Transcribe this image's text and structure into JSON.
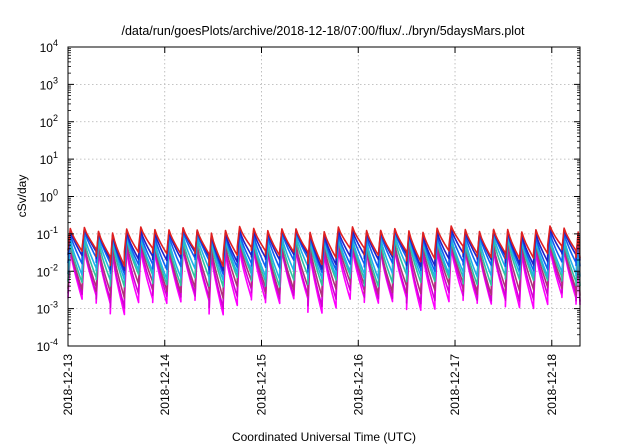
{
  "chart_data": {
    "type": "line",
    "title": "/data/run/goesPlots/archive/2018-12-18/07:00/flux/../bryn/5daysMars.plot",
    "xlabel": "Coordinated Universal Time (UTC)",
    "ylabel": "cSv/day",
    "yscale": "log",
    "ylim": [
      0.0001,
      10000
    ],
    "xlim": [
      "2018-12-13T00:00",
      "2018-12-18T07:00"
    ],
    "y_ticks": [
      {
        "value": 0.0001,
        "base": "10",
        "exp": "-4"
      },
      {
        "value": 0.001,
        "base": "10",
        "exp": "-3"
      },
      {
        "value": 0.01,
        "base": "10",
        "exp": "-2"
      },
      {
        "value": 0.1,
        "base": "10",
        "exp": "-1"
      },
      {
        "value": 1,
        "base": "10",
        "exp": "0"
      },
      {
        "value": 10,
        "base": "10",
        "exp": "1"
      },
      {
        "value": 100,
        "base": "10",
        "exp": "2"
      },
      {
        "value": 1000,
        "base": "10",
        "exp": "3"
      },
      {
        "value": 10000,
        "base": "10",
        "exp": "4"
      }
    ],
    "x_ticks": [
      "2018-12-13",
      "2018-12-14",
      "2018-12-15",
      "2018-12-16",
      "2018-12-17",
      "2018-12-18"
    ],
    "grid": true,
    "sawtooth_period_hours": 3.5,
    "series": [
      {
        "color": "#ff00ff",
        "peak": 0.035,
        "trough": 0.0015
      },
      {
        "color": "#d400d4",
        "peak": 0.04,
        "trough": 0.0022
      },
      {
        "color": "#b0307a",
        "peak": 0.05,
        "trough": 0.0035
      },
      {
        "color": "#2ec4a0",
        "peak": 0.065,
        "trough": 0.006
      },
      {
        "color": "#20b0e8",
        "peak": 0.08,
        "trough": 0.009
      },
      {
        "color": "#1060f0",
        "peak": 0.1,
        "trough": 0.015
      },
      {
        "color": "#2020c8",
        "peak": 0.115,
        "trough": 0.022
      },
      {
        "color": "#e02020",
        "peak": 0.13,
        "trough": 0.03
      }
    ]
  }
}
